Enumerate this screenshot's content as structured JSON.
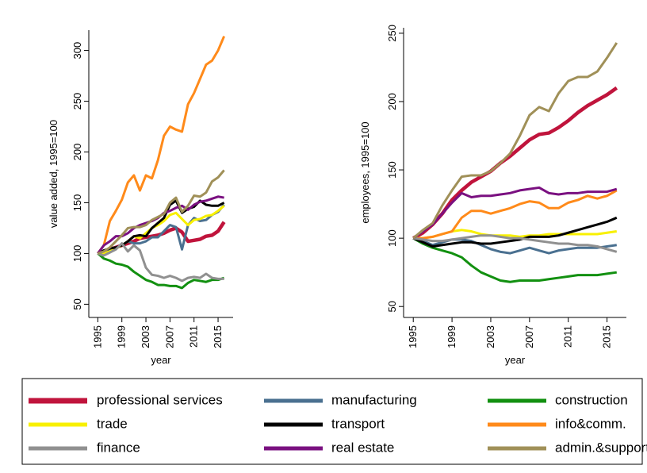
{
  "chart_data": [
    {
      "type": "line",
      "xlabel": "year",
      "ylabel": "value added, 1995=100",
      "x": [
        1995,
        1996,
        1997,
        1998,
        1999,
        2000,
        2001,
        2002,
        2003,
        2004,
        2005,
        2006,
        2007,
        2008,
        2009,
        2010,
        2011,
        2012,
        2013,
        2014,
        2015,
        2016
      ],
      "xlim": [
        1993.5,
        2017.5
      ],
      "xticks": [
        1995,
        1999,
        2003,
        2007,
        2011,
        2015
      ],
      "ylim": [
        37,
        320
      ],
      "yticks": [
        50,
        100,
        150,
        200,
        250,
        300
      ],
      "grid": false,
      "series": [
        {
          "name": "professional services",
          "color": "#c0143c",
          "values": [
            100,
            102,
            104,
            106,
            108,
            110,
            112,
            115,
            116,
            117,
            118,
            120,
            123,
            125,
            121,
            112,
            113,
            114,
            117,
            118,
            122,
            131
          ]
        },
        {
          "name": "manufacturing",
          "color": "#4a7090",
          "values": [
            100,
            103,
            104,
            105,
            108,
            112,
            110,
            110,
            112,
            116,
            116,
            122,
            128,
            126,
            104,
            128,
            135,
            132,
            133,
            138,
            141,
            148
          ]
        },
        {
          "name": "construction",
          "color": "#129010",
          "values": [
            100,
            95,
            93,
            90,
            89,
            87,
            82,
            78,
            74,
            72,
            69,
            69,
            68,
            68,
            66,
            71,
            74,
            73,
            72,
            74,
            74,
            76
          ]
        },
        {
          "name": "trade",
          "color": "#f8f000",
          "values": [
            100,
            100,
            102,
            105,
            108,
            112,
            117,
            115,
            120,
            125,
            128,
            132,
            138,
            140,
            134,
            128,
            133,
            134,
            137,
            138,
            142,
            147
          ]
        },
        {
          "name": "transport",
          "color": "#000000",
          "values": [
            100,
            103,
            105,
            106,
            108,
            112,
            117,
            118,
            117,
            125,
            130,
            135,
            148,
            152,
            140,
            144,
            146,
            152,
            148,
            147,
            147,
            150
          ]
        },
        {
          "name": "info&comm.",
          "color": "#ff8a1a",
          "values": [
            100,
            108,
            132,
            142,
            153,
            170,
            177,
            162,
            177,
            174,
            192,
            216,
            225,
            222,
            220,
            247,
            258,
            272,
            286,
            290,
            300,
            314
          ]
        },
        {
          "name": "finance",
          "color": "#909090",
          "values": [
            100,
            98,
            101,
            104,
            110,
            102,
            108,
            103,
            86,
            79,
            78,
            76,
            78,
            76,
            73,
            76,
            77,
            76,
            80,
            76,
            75,
            75
          ]
        },
        {
          "name": "real estate",
          "color": "#7a1080",
          "values": [
            100,
            108,
            112,
            117,
            117,
            120,
            125,
            128,
            130,
            132,
            135,
            140,
            142,
            145,
            147,
            143,
            148,
            151,
            152,
            154,
            156,
            155
          ]
        },
        {
          "name": "admin.&support",
          "color": "#a09058",
          "values": [
            100,
            102,
            106,
            112,
            118,
            125,
            126,
            126,
            128,
            133,
            136,
            139,
            150,
            155,
            141,
            147,
            157,
            156,
            160,
            171,
            175,
            182
          ]
        }
      ]
    },
    {
      "type": "line",
      "xlabel": "year",
      "ylabel": "employees, 1995=100",
      "x": [
        1995,
        1996,
        1997,
        1998,
        1999,
        2000,
        2001,
        2002,
        2003,
        2004,
        2005,
        2006,
        2007,
        2008,
        2009,
        2010,
        2011,
        2012,
        2013,
        2014,
        2015,
        2016
      ],
      "xlim": [
        1994,
        2017
      ],
      "xticks": [
        1995,
        1999,
        2003,
        2007,
        2011,
        2015
      ],
      "ylim": [
        42,
        254
      ],
      "yticks": [
        50,
        100,
        150,
        200,
        250
      ],
      "grid": false,
      "series": [
        {
          "name": "professional services",
          "color": "#c0143c",
          "values": [
            100,
            104,
            110,
            118,
            128,
            135,
            141,
            145,
            149,
            155,
            160,
            166,
            172,
            176,
            177,
            181,
            186,
            192,
            197,
            201,
            205,
            210
          ]
        },
        {
          "name": "manufacturing",
          "color": "#4a7090",
          "values": [
            100,
            98,
            95,
            97,
            99,
            99,
            98,
            95,
            92,
            90,
            89,
            91,
            93,
            91,
            89,
            91,
            92,
            93,
            93,
            93,
            94,
            95
          ]
        },
        {
          "name": "construction",
          "color": "#129010",
          "values": [
            100,
            96,
            93,
            91,
            89,
            86,
            80,
            75,
            72,
            69,
            68,
            69,
            69,
            69,
            70,
            71,
            72,
            73,
            73,
            73,
            74,
            75
          ]
        },
        {
          "name": "trade",
          "color": "#f8f000",
          "values": [
            100,
            100,
            101,
            103,
            105,
            106,
            105,
            103,
            102,
            102,
            102,
            101,
            102,
            102,
            103,
            103,
            103,
            103,
            103,
            103,
            104,
            105
          ]
        },
        {
          "name": "transport",
          "color": "#000000",
          "values": [
            100,
            97,
            94,
            95,
            96,
            97,
            97,
            96,
            96,
            97,
            98,
            99,
            101,
            101,
            101,
            102,
            104,
            106,
            108,
            110,
            112,
            115
          ]
        },
        {
          "name": "info&comm.",
          "color": "#ff8a1a",
          "values": [
            100,
            100,
            101,
            103,
            105,
            115,
            120,
            120,
            118,
            120,
            122,
            125,
            127,
            126,
            122,
            122,
            126,
            128,
            131,
            129,
            131,
            135
          ]
        },
        {
          "name": "finance",
          "color": "#909090",
          "values": [
            100,
            99,
            98,
            98,
            99,
            100,
            101,
            102,
            102,
            101,
            100,
            100,
            99,
            98,
            97,
            96,
            96,
            95,
            95,
            94,
            92,
            90
          ]
        },
        {
          "name": "real estate",
          "color": "#7a1080",
          "values": [
            100,
            105,
            110,
            118,
            126,
            133,
            130,
            131,
            131,
            132,
            133,
            135,
            136,
            137,
            133,
            132,
            133,
            133,
            134,
            134,
            134,
            136
          ]
        },
        {
          "name": "admin.&support",
          "color": "#a09058",
          "values": [
            100,
            106,
            111,
            124,
            135,
            145,
            146,
            146,
            149,
            155,
            162,
            175,
            190,
            196,
            193,
            206,
            215,
            218,
            218,
            222,
            232,
            243
          ]
        }
      ]
    }
  ]
}
